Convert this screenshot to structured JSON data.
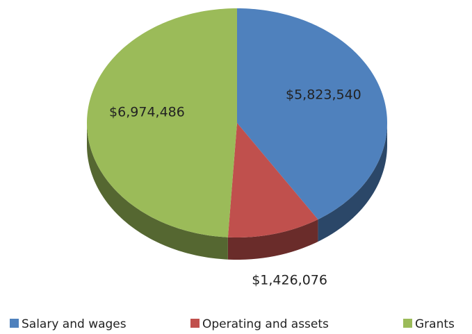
{
  "chart_data": {
    "type": "pie",
    "categories": [
      "Salary and wages",
      "Operating and assets",
      "Grants"
    ],
    "values": [
      5823540,
      1426076,
      6974486
    ],
    "value_labels": [
      "$5,823,540",
      "$1,426,076",
      "$6,974,486"
    ],
    "colors": [
      "#4f81bd",
      "#c0504d",
      "#9bbb59"
    ],
    "legend": "bottom"
  }
}
